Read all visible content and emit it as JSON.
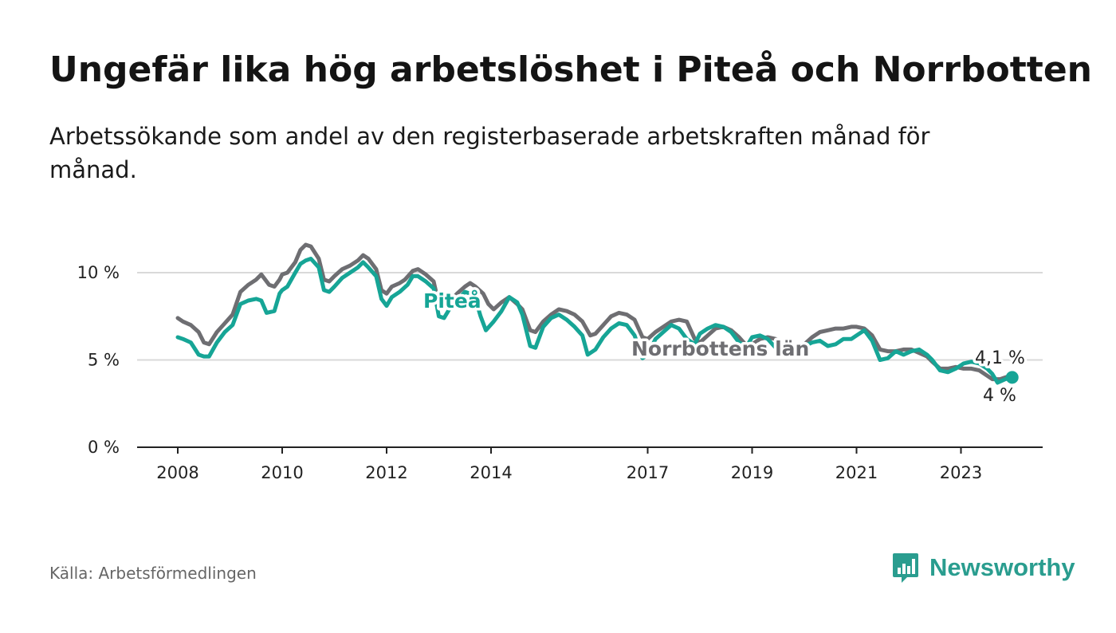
{
  "title": "Ungefär lika hög arbetslöshet i Piteå och Norrbotten",
  "subtitle": "Arbetssökande som andel av den registerbaserade arbetskraften månad för månad.",
  "source": "Källa: Arbetsförmedlingen",
  "brand": "Newsworthy",
  "colors": {
    "pitea": "#16a596",
    "norrbotten": "#6e6e72",
    "grid": "#d9d9d9",
    "axis": "#222222",
    "brand": "#2a9d8f"
  },
  "chart_data": {
    "type": "line",
    "xlim": [
      2008.0,
      2025.3
    ],
    "ylim": [
      0,
      12
    ],
    "yticks": [
      0,
      5,
      10
    ],
    "ytick_labels": [
      "0 %",
      "5 %",
      "10 %"
    ],
    "xticks": [
      2008,
      2010,
      2012,
      2014,
      2017,
      2019,
      2021,
      2023
    ],
    "xtick_labels": [
      "2008",
      "2010",
      "2012",
      "2014",
      "2017",
      "2019",
      "2021",
      "2023"
    ],
    "series": [
      {
        "name": "Norrbottens län",
        "label": "Norrbottens län",
        "end_label": "4,1 %",
        "points": [
          [
            2008.0,
            7.4
          ],
          [
            2008.1,
            7.2
          ],
          [
            2008.25,
            7.0
          ],
          [
            2008.4,
            6.6
          ],
          [
            2008.5,
            6.0
          ],
          [
            2008.6,
            5.9
          ],
          [
            2008.75,
            6.6
          ],
          [
            2008.9,
            7.1
          ],
          [
            2009.05,
            7.6
          ],
          [
            2009.2,
            8.9
          ],
          [
            2009.35,
            9.3
          ],
          [
            2009.5,
            9.6
          ],
          [
            2009.6,
            9.9
          ],
          [
            2009.75,
            9.3
          ],
          [
            2009.85,
            9.2
          ],
          [
            2009.95,
            9.6
          ],
          [
            2010.0,
            9.9
          ],
          [
            2010.1,
            10.0
          ],
          [
            2010.25,
            10.6
          ],
          [
            2010.35,
            11.3
          ],
          [
            2010.45,
            11.6
          ],
          [
            2010.55,
            11.5
          ],
          [
            2010.7,
            10.8
          ],
          [
            2010.8,
            9.6
          ],
          [
            2010.9,
            9.5
          ],
          [
            2011.0,
            9.8
          ],
          [
            2011.15,
            10.2
          ],
          [
            2011.3,
            10.4
          ],
          [
            2011.45,
            10.7
          ],
          [
            2011.55,
            11.0
          ],
          [
            2011.65,
            10.8
          ],
          [
            2011.8,
            10.2
          ],
          [
            2011.9,
            9.0
          ],
          [
            2012.0,
            8.8
          ],
          [
            2012.1,
            9.2
          ],
          [
            2012.25,
            9.4
          ],
          [
            2012.35,
            9.6
          ],
          [
            2012.5,
            10.1
          ],
          [
            2012.6,
            10.2
          ],
          [
            2012.75,
            9.9
          ],
          [
            2012.9,
            9.5
          ],
          [
            2013.0,
            8.2
          ],
          [
            2013.1,
            8.1
          ],
          [
            2013.2,
            8.3
          ],
          [
            2013.35,
            8.8
          ],
          [
            2013.5,
            9.2
          ],
          [
            2013.6,
            9.4
          ],
          [
            2013.7,
            9.2
          ],
          [
            2013.85,
            8.8
          ],
          [
            2013.95,
            8.2
          ],
          [
            2014.05,
            7.9
          ],
          [
            2014.2,
            8.3
          ],
          [
            2014.35,
            8.6
          ],
          [
            2014.5,
            8.2
          ],
          [
            2014.6,
            7.9
          ],
          [
            2014.75,
            6.7
          ],
          [
            2014.85,
            6.6
          ],
          [
            2015.0,
            7.2
          ],
          [
            2015.15,
            7.6
          ],
          [
            2015.3,
            7.9
          ],
          [
            2015.45,
            7.8
          ],
          [
            2015.6,
            7.6
          ],
          [
            2015.75,
            7.2
          ],
          [
            2015.9,
            6.4
          ],
          [
            2016.0,
            6.5
          ],
          [
            2016.15,
            7.0
          ],
          [
            2016.3,
            7.5
          ],
          [
            2016.45,
            7.7
          ],
          [
            2016.6,
            7.6
          ],
          [
            2016.75,
            7.3
          ],
          [
            2016.9,
            6.3
          ],
          [
            2017.0,
            6.2
          ],
          [
            2017.15,
            6.6
          ],
          [
            2017.3,
            6.9
          ],
          [
            2017.45,
            7.2
          ],
          [
            2017.6,
            7.3
          ],
          [
            2017.75,
            7.2
          ],
          [
            2017.9,
            6.2
          ],
          [
            2018.0,
            6.0
          ],
          [
            2018.15,
            6.4
          ],
          [
            2018.3,
            6.8
          ],
          [
            2018.45,
            6.9
          ],
          [
            2018.6,
            6.7
          ],
          [
            2018.75,
            6.3
          ],
          [
            2018.9,
            5.8
          ],
          [
            2019.0,
            5.9
          ],
          [
            2019.15,
            6.2
          ],
          [
            2019.3,
            6.3
          ],
          [
            2019.45,
            6.2
          ],
          [
            2019.6,
            6.0
          ],
          [
            2019.75,
            5.8
          ],
          [
            2019.9,
            5.7
          ],
          [
            2020.0,
            5.9
          ],
          [
            2020.15,
            6.3
          ],
          [
            2020.3,
            6.6
          ],
          [
            2020.45,
            6.7
          ],
          [
            2020.6,
            6.8
          ],
          [
            2020.75,
            6.8
          ],
          [
            2020.9,
            6.9
          ],
          [
            2021.0,
            6.9
          ],
          [
            2021.15,
            6.8
          ],
          [
            2021.3,
            6.4
          ],
          [
            2021.45,
            5.6
          ],
          [
            2021.6,
            5.5
          ],
          [
            2021.75,
            5.5
          ],
          [
            2021.9,
            5.6
          ],
          [
            2022.05,
            5.6
          ],
          [
            2022.2,
            5.4
          ],
          [
            2022.35,
            5.2
          ],
          [
            2022.45,
            4.9
          ],
          [
            2022.6,
            4.5
          ],
          [
            2022.75,
            4.5
          ],
          [
            2022.9,
            4.6
          ],
          [
            2023.05,
            4.5
          ],
          [
            2023.2,
            4.5
          ],
          [
            2023.35,
            4.4
          ],
          [
            2023.5,
            4.1
          ],
          [
            2023.6,
            3.9
          ],
          [
            2023.75,
            3.9
          ],
          [
            2023.85,
            4.0
          ],
          [
            2023.95,
            4.1
          ]
        ]
      },
      {
        "name": "Piteå",
        "label": "Piteå",
        "end_label": "4 %",
        "points": [
          [
            2008.0,
            6.3
          ],
          [
            2008.1,
            6.2
          ],
          [
            2008.25,
            6.0
          ],
          [
            2008.4,
            5.3
          ],
          [
            2008.5,
            5.2
          ],
          [
            2008.6,
            5.2
          ],
          [
            2008.75,
            6.0
          ],
          [
            2008.9,
            6.6
          ],
          [
            2009.05,
            7.0
          ],
          [
            2009.2,
            8.2
          ],
          [
            2009.35,
            8.4
          ],
          [
            2009.5,
            8.5
          ],
          [
            2009.6,
            8.4
          ],
          [
            2009.7,
            7.7
          ],
          [
            2009.85,
            7.8
          ],
          [
            2009.95,
            8.8
          ],
          [
            2010.0,
            9.0
          ],
          [
            2010.1,
            9.2
          ],
          [
            2010.25,
            10.0
          ],
          [
            2010.35,
            10.5
          ],
          [
            2010.45,
            10.7
          ],
          [
            2010.55,
            10.8
          ],
          [
            2010.7,
            10.3
          ],
          [
            2010.8,
            9.0
          ],
          [
            2010.9,
            8.9
          ],
          [
            2011.0,
            9.2
          ],
          [
            2011.15,
            9.7
          ],
          [
            2011.3,
            10.0
          ],
          [
            2011.45,
            10.3
          ],
          [
            2011.55,
            10.6
          ],
          [
            2011.65,
            10.3
          ],
          [
            2011.8,
            9.8
          ],
          [
            2011.9,
            8.5
          ],
          [
            2012.0,
            8.1
          ],
          [
            2012.1,
            8.6
          ],
          [
            2012.25,
            8.9
          ],
          [
            2012.4,
            9.3
          ],
          [
            2012.5,
            9.8
          ],
          [
            2012.6,
            9.8
          ],
          [
            2012.75,
            9.5
          ],
          [
            2012.9,
            9.1
          ],
          [
            2013.0,
            7.5
          ],
          [
            2013.1,
            7.4
          ],
          [
            2013.2,
            7.9
          ],
          [
            2013.35,
            8.4
          ],
          [
            2013.5,
            8.9
          ],
          [
            2013.6,
            8.8
          ],
          [
            2013.7,
            8.5
          ],
          [
            2013.8,
            7.5
          ],
          [
            2013.9,
            6.7
          ],
          [
            2014.05,
            7.2
          ],
          [
            2014.2,
            7.8
          ],
          [
            2014.35,
            8.6
          ],
          [
            2014.5,
            8.3
          ],
          [
            2014.6,
            7.6
          ],
          [
            2014.75,
            5.8
          ],
          [
            2014.85,
            5.7
          ],
          [
            2015.0,
            6.9
          ],
          [
            2015.15,
            7.4
          ],
          [
            2015.3,
            7.6
          ],
          [
            2015.45,
            7.3
          ],
          [
            2015.6,
            6.9
          ],
          [
            2015.75,
            6.4
          ],
          [
            2015.85,
            5.3
          ],
          [
            2016.0,
            5.6
          ],
          [
            2016.15,
            6.3
          ],
          [
            2016.3,
            6.8
          ],
          [
            2016.45,
            7.1
          ],
          [
            2016.6,
            7.0
          ],
          [
            2016.75,
            6.4
          ],
          [
            2016.9,
            5.1
          ],
          [
            2017.0,
            5.3
          ],
          [
            2017.15,
            6.2
          ],
          [
            2017.3,
            6.6
          ],
          [
            2017.45,
            7.0
          ],
          [
            2017.6,
            6.8
          ],
          [
            2017.75,
            6.2
          ],
          [
            2017.9,
            5.9
          ],
          [
            2018.0,
            6.5
          ],
          [
            2018.15,
            6.8
          ],
          [
            2018.3,
            7.0
          ],
          [
            2018.45,
            6.9
          ],
          [
            2018.6,
            6.6
          ],
          [
            2018.75,
            6.0
          ],
          [
            2018.9,
            5.8
          ],
          [
            2019.0,
            6.3
          ],
          [
            2019.15,
            6.4
          ],
          [
            2019.3,
            6.2
          ],
          [
            2019.45,
            5.7
          ],
          [
            2019.6,
            5.3
          ],
          [
            2019.75,
            5.3
          ],
          [
            2019.9,
            5.5
          ],
          [
            2020.0,
            5.8
          ],
          [
            2020.15,
            6.0
          ],
          [
            2020.3,
            6.1
          ],
          [
            2020.45,
            5.8
          ],
          [
            2020.6,
            5.9
          ],
          [
            2020.75,
            6.2
          ],
          [
            2020.9,
            6.2
          ],
          [
            2021.0,
            6.4
          ],
          [
            2021.15,
            6.7
          ],
          [
            2021.3,
            6.1
          ],
          [
            2021.45,
            5.0
          ],
          [
            2021.6,
            5.1
          ],
          [
            2021.75,
            5.5
          ],
          [
            2021.9,
            5.3
          ],
          [
            2022.05,
            5.5
          ],
          [
            2022.2,
            5.6
          ],
          [
            2022.35,
            5.3
          ],
          [
            2022.45,
            5.0
          ],
          [
            2022.6,
            4.4
          ],
          [
            2022.75,
            4.3
          ],
          [
            2022.9,
            4.5
          ],
          [
            2023.05,
            4.8
          ],
          [
            2023.2,
            4.9
          ],
          [
            2023.35,
            4.8
          ],
          [
            2023.5,
            4.5
          ],
          [
            2023.6,
            4.2
          ],
          [
            2023.7,
            3.7
          ],
          [
            2023.85,
            3.9
          ],
          [
            2023.95,
            4.0
          ]
        ]
      }
    ]
  }
}
